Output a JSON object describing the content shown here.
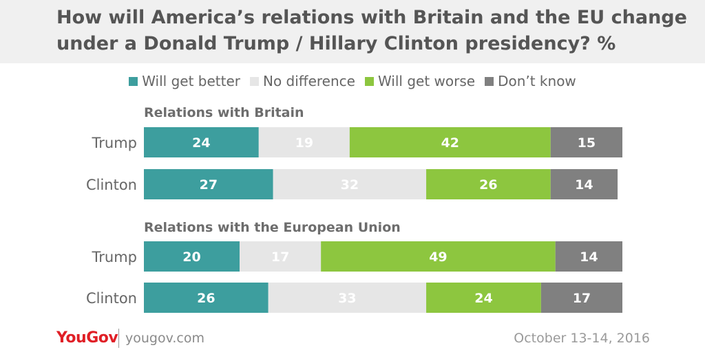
{
  "header": {
    "title": "How will America’s relations with Britain and the EU change under a Donald Trump / Hillary Clinton presidency? %"
  },
  "legend": [
    {
      "label": "Will get better",
      "color": "#3d9e9e"
    },
    {
      "label": "No difference",
      "color": "#e6e6e6"
    },
    {
      "label": "Will get worse",
      "color": "#8dc63f"
    },
    {
      "label": "Don’t know",
      "color": "#808080"
    }
  ],
  "chart_data": {
    "type": "bar",
    "orientation": "horizontal",
    "stacked": true,
    "unit": "%",
    "series": [
      {
        "name": "Will get better",
        "color": "#3d9e9e"
      },
      {
        "name": "No difference",
        "color": "#e6e6e6"
      },
      {
        "name": "Will get worse",
        "color": "#8dc63f"
      },
      {
        "name": "Don’t know",
        "color": "#808080"
      }
    ],
    "groups": [
      {
        "title": "Relations with Britain",
        "rows": [
          {
            "label": "Trump",
            "values": [
              24,
              19,
              42,
              15
            ]
          },
          {
            "label": "Clinton",
            "values": [
              27,
              32,
              26,
              14
            ]
          }
        ]
      },
      {
        "title": "Relations with the European Union",
        "rows": [
          {
            "label": "Trump",
            "values": [
              20,
              17,
              49,
              14
            ]
          },
          {
            "label": "Clinton",
            "values": [
              26,
              33,
              24,
              17
            ]
          }
        ]
      }
    ]
  },
  "footer": {
    "logo": "YouGov",
    "url": "yougov.com",
    "date": "October 13-14, 2016"
  }
}
